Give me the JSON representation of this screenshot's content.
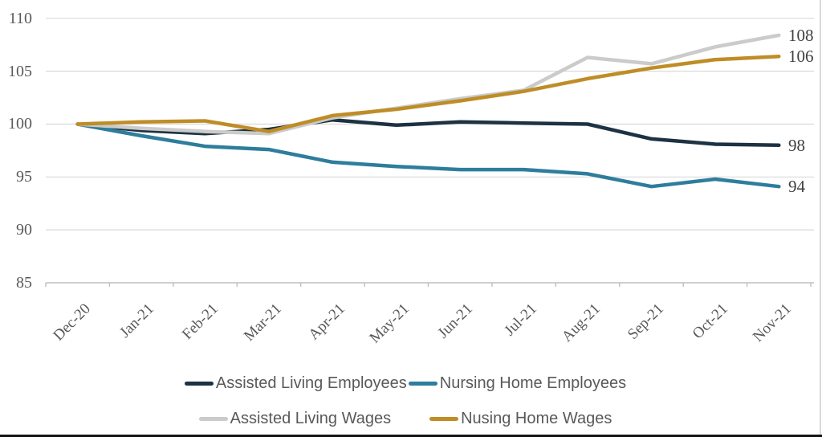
{
  "chart_data": {
    "type": "line",
    "title": "",
    "categories": [
      "Dec-20",
      "Jan-21",
      "Feb-21",
      "Mar-21",
      "Apr-21",
      "May-21",
      "Jun-21",
      "Jul-21",
      "Aug-21",
      "Sep-21",
      "Oct-21",
      "Nov-21"
    ],
    "series": [
      {
        "name": "Assisted Living Employees",
        "color": "#1d3243",
        "values": [
          100,
          99.4,
          99.1,
          99.5,
          100.4,
          99.9,
          100.2,
          100.1,
          100.0,
          98.6,
          98.1,
          98.0
        ]
      },
      {
        "name": "Nursing Home Employees",
        "color": "#2e7d9c",
        "values": [
          100,
          98.9,
          97.9,
          97.6,
          96.4,
          96.0,
          95.7,
          95.7,
          95.3,
          94.1,
          94.8,
          94.1
        ]
      },
      {
        "name": "Assisted Living Wages",
        "color": "#cbcbcb",
        "values": [
          100,
          99.6,
          99.3,
          99.1,
          100.6,
          101.5,
          102.4,
          103.2,
          106.3,
          105.7,
          107.3,
          108.4
        ]
      },
      {
        "name": "Nusing Home Wages",
        "color": "#bf8d26",
        "values": [
          100,
          100.2,
          100.3,
          99.3,
          100.8,
          101.4,
          102.2,
          103.1,
          104.3,
          105.3,
          106.1,
          106.4
        ]
      }
    ],
    "ylim": [
      85,
      110
    ],
    "yticks": [
      85,
      90,
      95,
      100,
      105,
      110
    ],
    "grid": "horizontal-gridlines",
    "legend_position": "bottom-two-rows",
    "end_labels": [
      {
        "text": "108",
        "series_index": 2
      },
      {
        "text": "106",
        "series_index": 3
      },
      {
        "text": "98",
        "series_index": 0
      },
      {
        "text": "94",
        "series_index": 1
      }
    ]
  },
  "legend": {
    "rows": [
      [
        0,
        1
      ],
      [
        2,
        3
      ]
    ]
  },
  "styles": {
    "axis_text_color": "#595959",
    "end_label_color": "#404040",
    "gridline_color": "#d9d9d9",
    "axis_line_color": "#bfbfbf",
    "background": "#ffffff",
    "bottom_bar_color": "#141414",
    "right_border_color": "#d9d9d9"
  }
}
